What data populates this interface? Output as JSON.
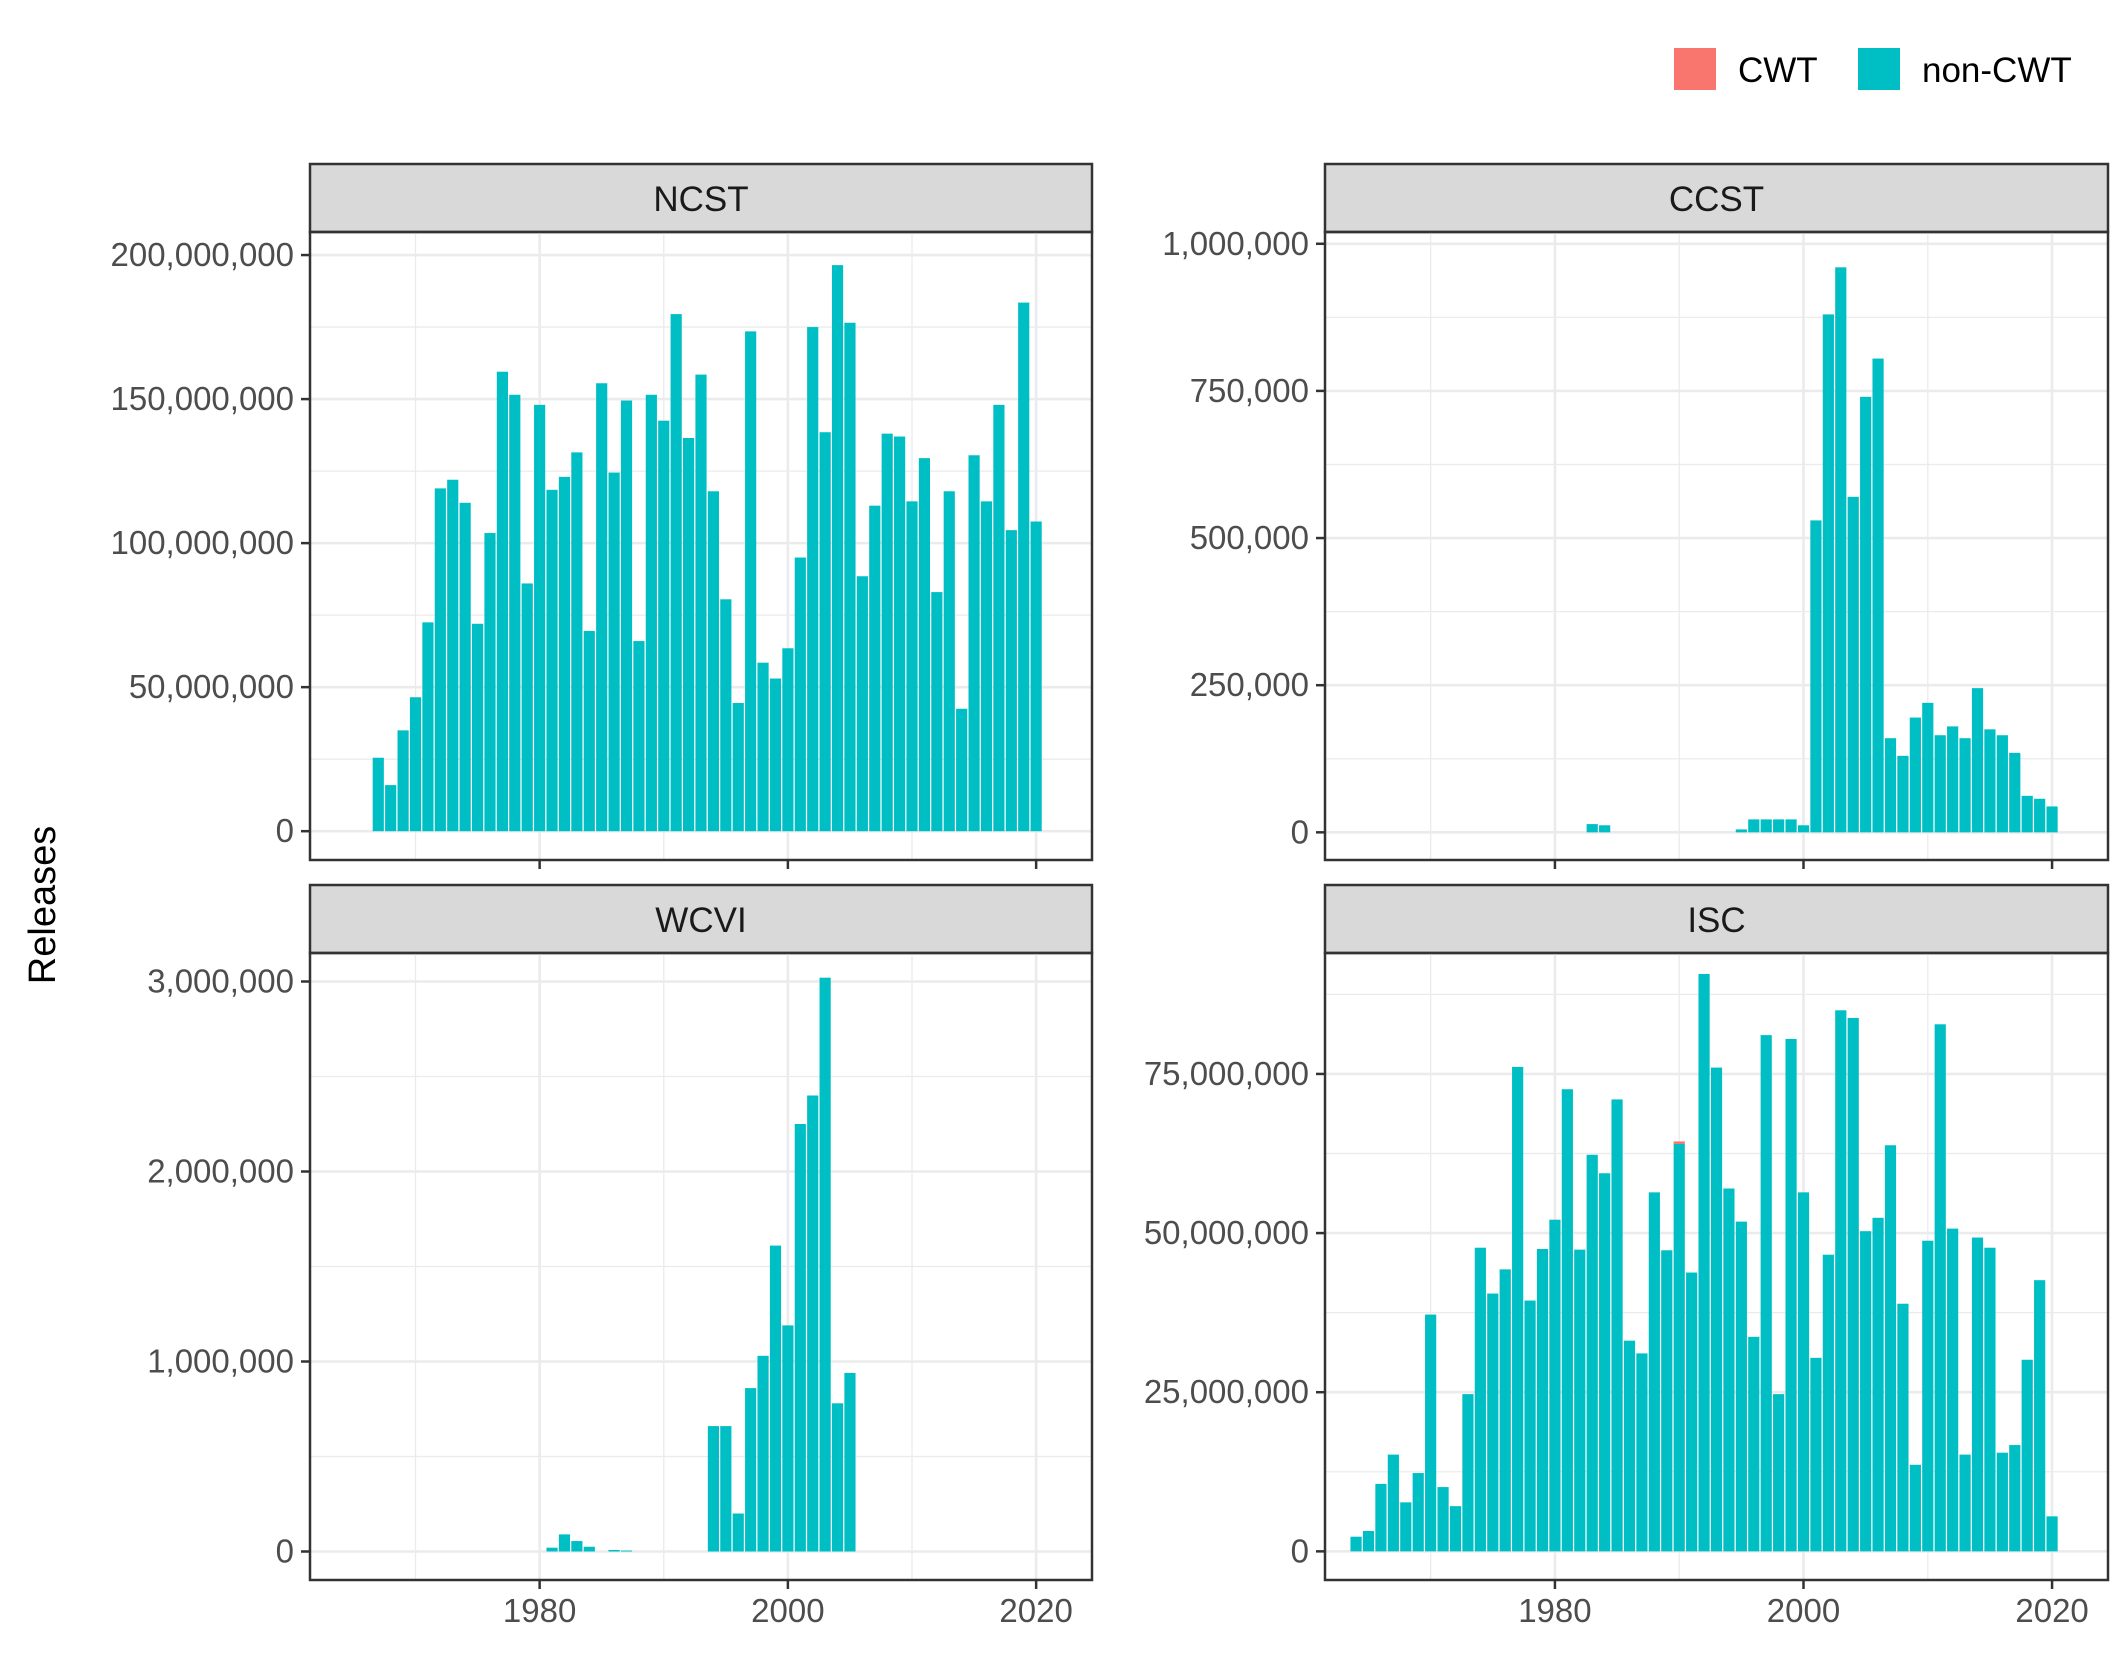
{
  "chart_data": {
    "type": "bar",
    "stacked": true,
    "facet_layout": "2x2",
    "ylabel": "Releases",
    "legend": {
      "position": "top-right",
      "entries": [
        {
          "label": "CWT",
          "color": "#F8766D"
        },
        {
          "label": "non-CWT",
          "color": "#00BFC4"
        }
      ]
    },
    "grid": true,
    "x_ticks": [
      1980,
      2000,
      2020
    ],
    "xlim": [
      1961.5,
      2024.5
    ],
    "panels": [
      {
        "title": "NCST",
        "ylim": [
          -10000000,
          208000000
        ],
        "y_ticks": [
          {
            "value": 0,
            "label": "0"
          },
          {
            "value": 50000000,
            "label": "50,000,000"
          },
          {
            "value": 100000000,
            "label": "100,000,000"
          },
          {
            "value": 150000000,
            "label": "150,000,000"
          },
          {
            "value": 200000000,
            "label": "200,000,000"
          }
        ],
        "x_start": 1967,
        "values": [
          25500000,
          16000000,
          35000000,
          46500000,
          72500000,
          119000000,
          122000000,
          114000000,
          72000000,
          103500000,
          159500000,
          151500000,
          86000000,
          148000000,
          118500000,
          123000000,
          131500000,
          69500000,
          155500000,
          124500000,
          149500000,
          66000000,
          151500000,
          142500000,
          179500000,
          136500000,
          158500000,
          118000000,
          80500000,
          44500000,
          173500000,
          58500000,
          53000000,
          63500000,
          95000000,
          175000000,
          138500000,
          196500000,
          176500000,
          88500000,
          113000000,
          138000000,
          137000000,
          114500000,
          129500000,
          83000000,
          118000000,
          42500000,
          130500000,
          114500000,
          148000000,
          104500000,
          183500000,
          107500000
        ],
        "cwt_values": []
      },
      {
        "title": "CCST",
        "ylim": [
          -47000000,
          1020000
        ],
        "ylim_actual": [
          -47000,
          1020000
        ],
        "y_ticks": [
          {
            "value": 0,
            "label": "0"
          },
          {
            "value": 250000,
            "label": "250,000"
          },
          {
            "value": 500000,
            "label": "500,000"
          },
          {
            "value": 750000,
            "label": "750,000"
          },
          {
            "value": 1000000,
            "label": "1,000,000"
          }
        ],
        "x_start": 1983,
        "values": [
          14000,
          12000,
          0,
          0,
          0,
          0,
          0,
          0,
          0,
          0,
          0,
          0,
          5000,
          22000,
          22000,
          22000,
          22000,
          12000,
          530000,
          880000,
          960000,
          570000,
          740000,
          805000,
          160000,
          130000,
          195000,
          220000,
          165000,
          180000,
          160000,
          245000,
          175000,
          165000,
          135000,
          62000,
          57000,
          44000
        ],
        "cwt_values": []
      },
      {
        "title": "WCVI",
        "ylim": [
          -150000,
          3150000
        ],
        "y_ticks": [
          {
            "value": 0,
            "label": "0"
          },
          {
            "value": 1000000,
            "label": "1,000,000"
          },
          {
            "value": 2000000,
            "label": "2,000,000"
          },
          {
            "value": 3000000,
            "label": "3,000,000"
          }
        ],
        "x_start": 1981,
        "values": [
          20000,
          90000,
          55000,
          25000,
          0,
          8000,
          5000,
          0,
          0,
          0,
          0,
          0,
          0,
          660000,
          660000,
          200000,
          860000,
          1030000,
          1610000,
          1190000,
          2250000,
          2400000,
          3020000,
          780000,
          940000
        ],
        "cwt_values": []
      },
      {
        "title": "ISC",
        "ylim": [
          -4500000,
          94000000
        ],
        "y_ticks": [
          {
            "value": 0,
            "label": "0"
          },
          {
            "value": 25000000,
            "label": "25,000,000"
          },
          {
            "value": 50000000,
            "label": "50,000,000"
          },
          {
            "value": 75000000,
            "label": "75,000,000"
          }
        ],
        "x_start": 1964,
        "values": [
          2300000,
          3200000,
          10600000,
          15200000,
          7700000,
          12300000,
          37200000,
          10100000,
          7100000,
          24700000,
          47700000,
          40500000,
          44300000,
          76100000,
          39400000,
          47500000,
          52100000,
          72600000,
          47400000,
          62300000,
          59400000,
          71000000,
          33100000,
          31100000,
          56400000,
          47300000,
          64000000,
          43800000,
          90700000,
          76000000,
          57000000,
          51800000,
          33700000,
          81100000,
          24700000,
          80500000,
          56400000,
          30400000,
          46600000,
          85000000,
          83800000,
          50300000,
          52400000,
          63800000,
          38900000,
          13600000,
          48800000,
          82800000,
          50700000,
          15200000,
          49300000,
          47700000,
          15500000,
          16700000,
          30100000,
          42600000,
          5500000
        ],
        "cwt_values": [
          {
            "year": 1990,
            "value": 400000
          }
        ]
      }
    ]
  }
}
